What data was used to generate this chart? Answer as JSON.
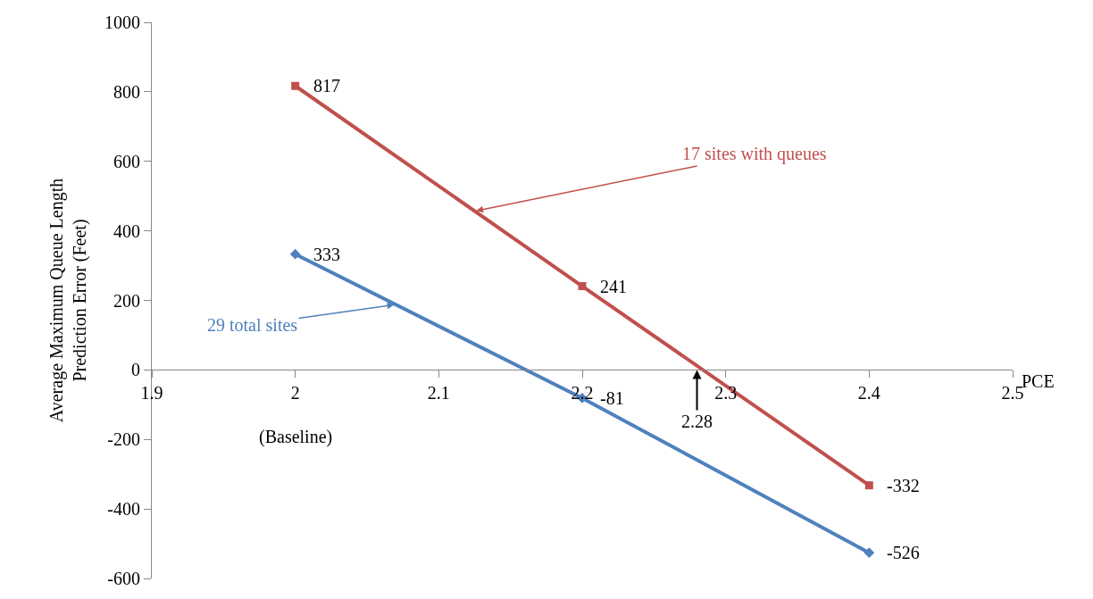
{
  "chart_data": {
    "type": "line",
    "xlabel": "PCE",
    "ylabel": "Average Maximum Queue Length\nPrediction Error (Feet)",
    "x": [
      2,
      2.2,
      2.4
    ],
    "series": [
      {
        "name": "17 sites with queues",
        "color": "#c0504d",
        "marker": "square",
        "values": [
          817,
          241,
          -332
        ]
      },
      {
        "name": "29 total sites",
        "color": "#4f81bd",
        "marker": "diamond",
        "values": [
          333,
          -81,
          -526
        ]
      }
    ],
    "xlim": [
      1.9,
      2.5
    ],
    "xticks": [
      1.9,
      2,
      2.1,
      2.2,
      2.3,
      2.4,
      2.5
    ],
    "ylim": [
      -600,
      1000
    ],
    "yticks": [
      -600,
      -400,
      -200,
      0,
      200,
      400,
      600,
      800,
      1000
    ],
    "data_labels": true,
    "legend": false,
    "annotations": [
      "(Baseline)",
      {
        "text": "2.28",
        "x": 2.28,
        "y": 0
      }
    ]
  }
}
